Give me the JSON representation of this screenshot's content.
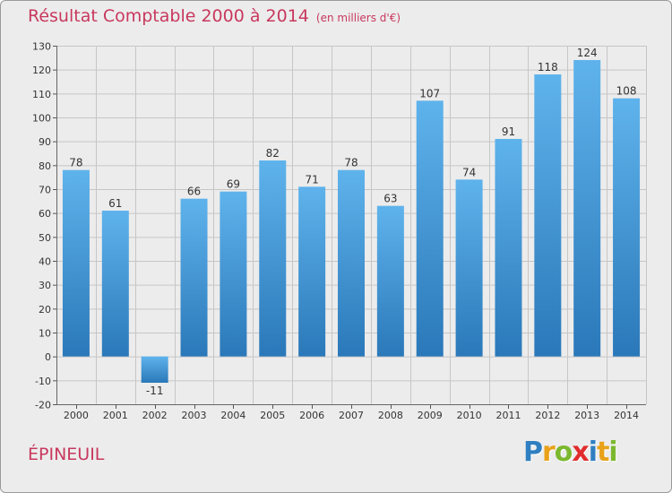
{
  "title": "Résultat Comptable 2000 à 2014",
  "subtitle": "(en milliers d'€)",
  "commune": "ÉPINEUIL",
  "logo": {
    "letters": [
      "P",
      "r",
      "o",
      "x",
      "i",
      "t",
      "i"
    ],
    "colors": [
      "#2f7fc1",
      "#e8a21a",
      "#7cb82f",
      "#e02d2d",
      "#2f7fc1",
      "#e8a21a",
      "#7cb82f"
    ]
  },
  "colors": {
    "bar_dark": "#2a78b9",
    "bar_light": "#5fb3ec",
    "title": "#c8385e",
    "grid": "#c6c6c6"
  },
  "chart_data": {
    "type": "bar",
    "title": "Résultat Comptable 2000 à 2014",
    "xlabel": "",
    "ylabel": "",
    "ylim": [
      -20,
      130
    ],
    "yticks": [
      -20,
      -10,
      0,
      10,
      20,
      30,
      40,
      50,
      60,
      70,
      80,
      90,
      100,
      110,
      120,
      130
    ],
    "categories": [
      "2000",
      "2001",
      "2002",
      "2003",
      "2004",
      "2005",
      "2006",
      "2007",
      "2008",
      "2009",
      "2010",
      "2011",
      "2012",
      "2013",
      "2014"
    ],
    "values": [
      78,
      61,
      -11,
      66,
      69,
      82,
      71,
      78,
      63,
      107,
      74,
      91,
      118,
      124,
      108
    ],
    "grid": true
  }
}
